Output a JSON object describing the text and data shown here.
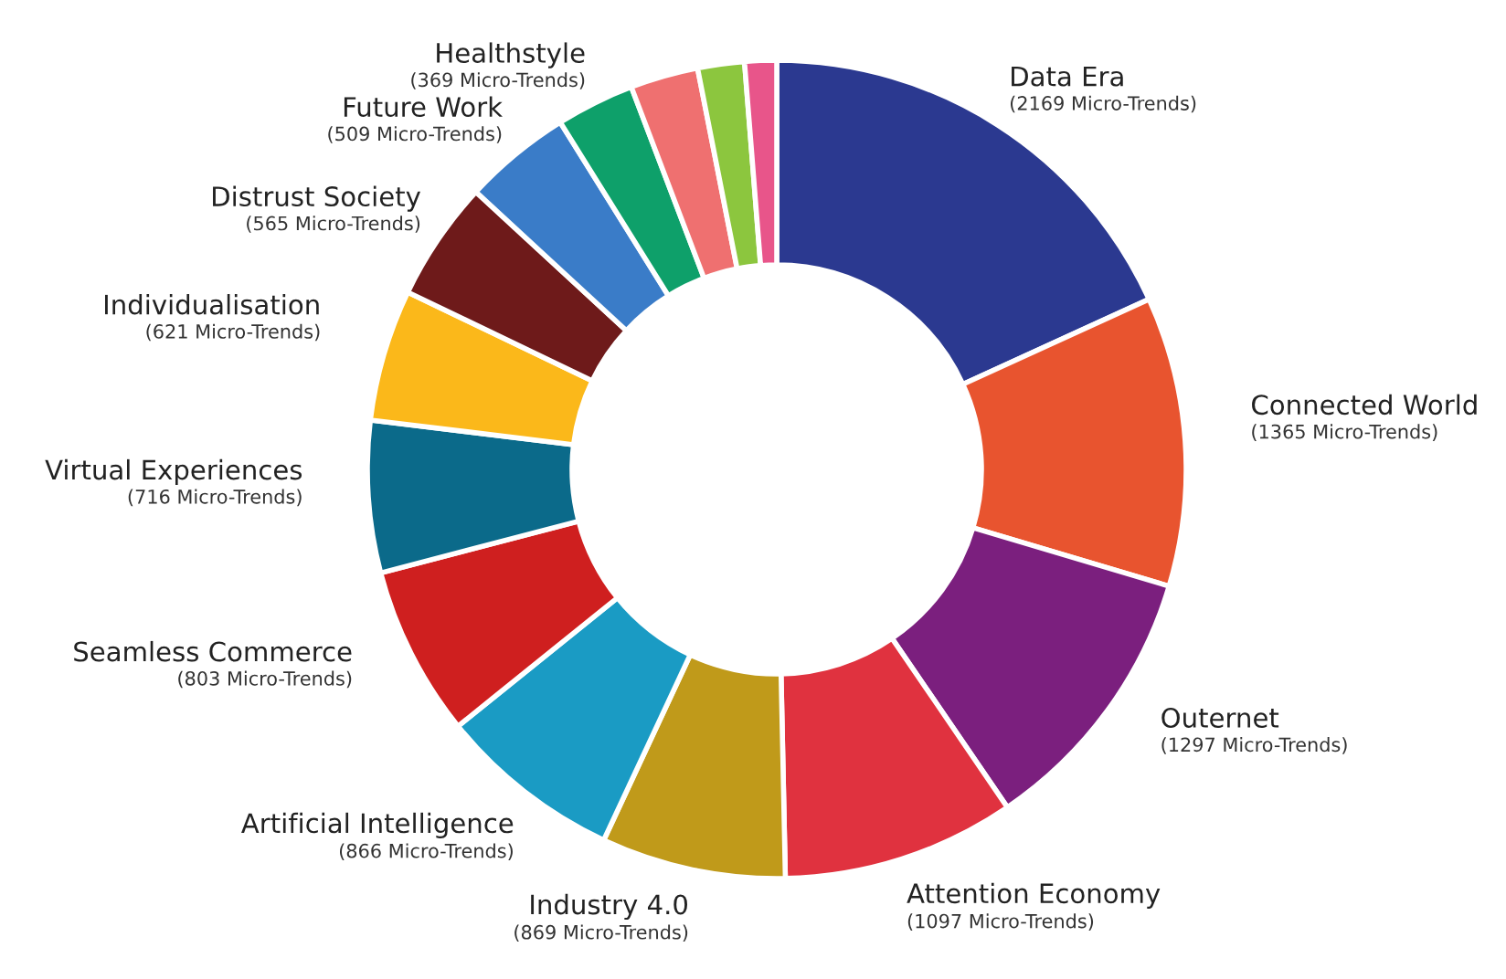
{
  "chart_data": {
    "type": "donut",
    "categories": [
      "Data Era",
      "Connected World",
      "Outernet",
      "Attention Economy",
      "Industry 4.0",
      "Artificial Intelligence",
      "Seamless Commerce",
      "Virtual Experiences",
      "Individualisation",
      "Distrust Society",
      "Future Work",
      "Healthstyle",
      null,
      null,
      null
    ],
    "values": [
      2169,
      1365,
      1297,
      1097,
      869,
      866,
      803,
      716,
      621,
      565,
      509,
      369,
      320,
      220,
      150
    ],
    "value_labels": [
      "(2169 Micro-Trends)",
      "(1365 Micro-Trends)",
      "(1297 Micro-Trends)",
      "(1097 Micro-Trends)",
      "(869 Micro-Trends)",
      "(866 Micro-Trends)",
      "(803 Micro-Trends)",
      "(716 Micro-Trends)",
      "(621 Micro-Trends)",
      "(565 Micro-Trends)",
      "(509 Micro-Trends)",
      "(369 Micro-Trends)",
      null,
      null,
      null
    ],
    "colors": [
      "#2b3990",
      "#e8542f",
      "#7b1f7e",
      "#e0323f",
      "#c09a1a",
      "#1a9bc4",
      "#cf1f1f",
      "#0b6a8a",
      "#fbb81a",
      "#6e1a1a",
      "#3a7cc8",
      "#0ea06a",
      "#ef7070",
      "#8cc63e",
      "#e8558a"
    ]
  }
}
